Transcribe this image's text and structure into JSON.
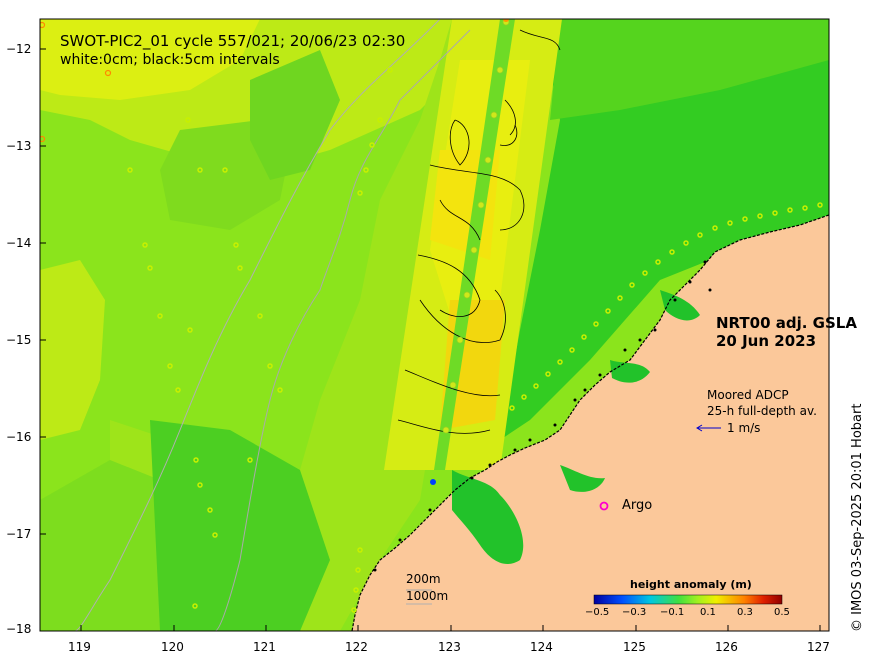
{
  "title_line1": "SWOT-PIC2_01 cycle 557/021; 20/06/23 02:30",
  "title_line2": "white:0cm; black:5cm intervals",
  "product_line1": "NRT00 adj. GSLA",
  "product_line2": "20 Jun 2023",
  "adcp_line1": "Moored ADCP",
  "adcp_line2": "25-h full-depth av.",
  "adcp_scale_label": "1 m/s",
  "argo_label": "Argo",
  "depth_label_200": "200m",
  "depth_label_1000": "1000m",
  "colorbar": {
    "title": "height anomaly (m)",
    "ticks": [
      "−0.5",
      "−0.3",
      "−0.1",
      "0.1",
      "0.3",
      "0.5"
    ]
  },
  "credit": "© IMOS 03-Sep-2025 20:01 Hobart",
  "x_ticks": [
    "119",
    "120",
    "121",
    "122",
    "123",
    "124",
    "125",
    "126",
    "127"
  ],
  "y_ticks": [
    "−12",
    "−13",
    "−14",
    "−15",
    "−16",
    "−17",
    "−18"
  ],
  "colors": {
    "land": "#fbc89a",
    "ocean_green": "#7fe51c",
    "yellow_green": "#c2ef12",
    "yellow": "#eff10c",
    "argo": "#ff00cc",
    "adcp_arrow": "#0000cc"
  }
}
